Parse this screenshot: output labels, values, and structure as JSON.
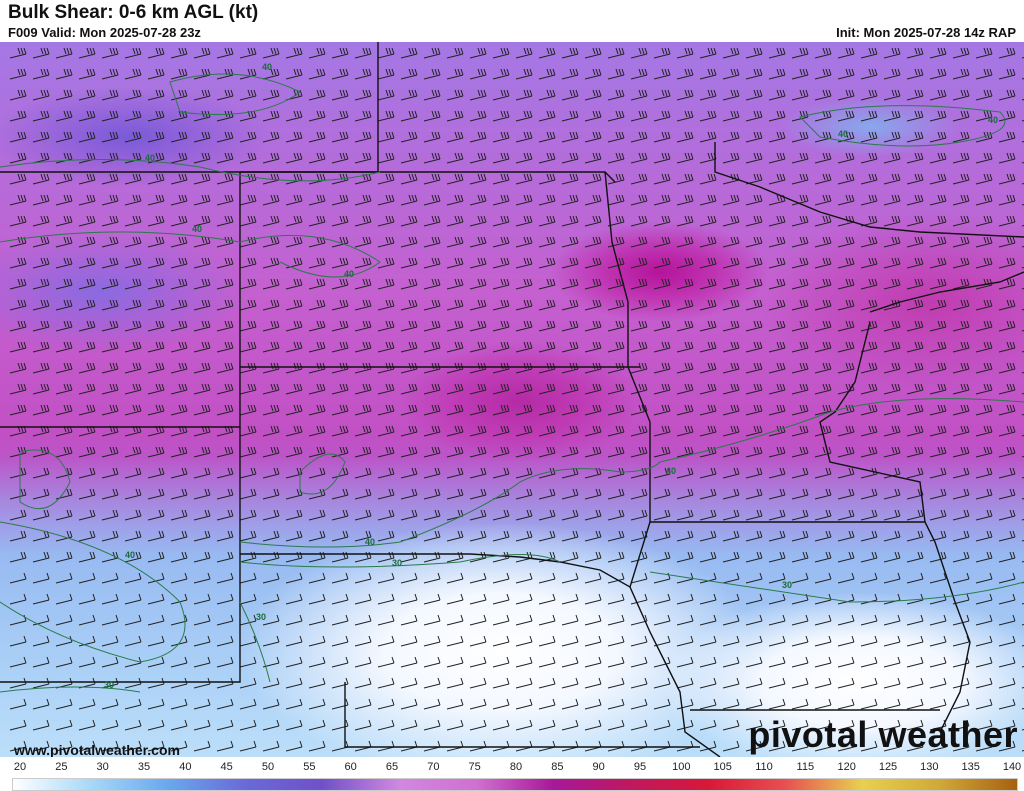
{
  "header": {
    "title": "Bulk Shear: 0-6 km AGL (kt)",
    "valid": "F009 Valid: Mon 2025-07-28 23z",
    "init": "Init: Mon 2025-07-28 14z RAP"
  },
  "map": {
    "contour_labels": [
      {
        "text": "40",
        "id": "c1"
      },
      {
        "text": "40",
        "id": "c2"
      },
      {
        "text": "40",
        "id": "c3"
      },
      {
        "text": "40",
        "id": "c4"
      },
      {
        "text": "40",
        "id": "c5"
      },
      {
        "text": "40",
        "id": "c6"
      },
      {
        "text": "40",
        "id": "c7"
      },
      {
        "text": "40",
        "id": "c8"
      },
      {
        "text": "40",
        "id": "c9"
      },
      {
        "text": "30",
        "id": "c10"
      },
      {
        "text": "30",
        "id": "c11"
      },
      {
        "text": "30",
        "id": "c12"
      },
      {
        "text": "30",
        "id": "c13"
      }
    ]
  },
  "footer": {
    "site": "www.pivotalweather.com",
    "logo": "pivotal weather"
  },
  "colorbar": {
    "ticks": [
      "20",
      "25",
      "30",
      "35",
      "40",
      "45",
      "50",
      "55",
      "60",
      "65",
      "70",
      "75",
      "80",
      "85",
      "90",
      "95",
      "100",
      "105",
      "110",
      "115",
      "120",
      "125",
      "130",
      "135",
      "140"
    ],
    "colors": [
      "#ffffff",
      "#a8d8f8",
      "#6aa8ee",
      "#6a6ad8",
      "#7050c8",
      "#d088e0",
      "#d070d0",
      "#a81898",
      "#c01860",
      "#d81838",
      "#e85050",
      "#e8d050",
      "#d0a838",
      "#a86010"
    ]
  }
}
